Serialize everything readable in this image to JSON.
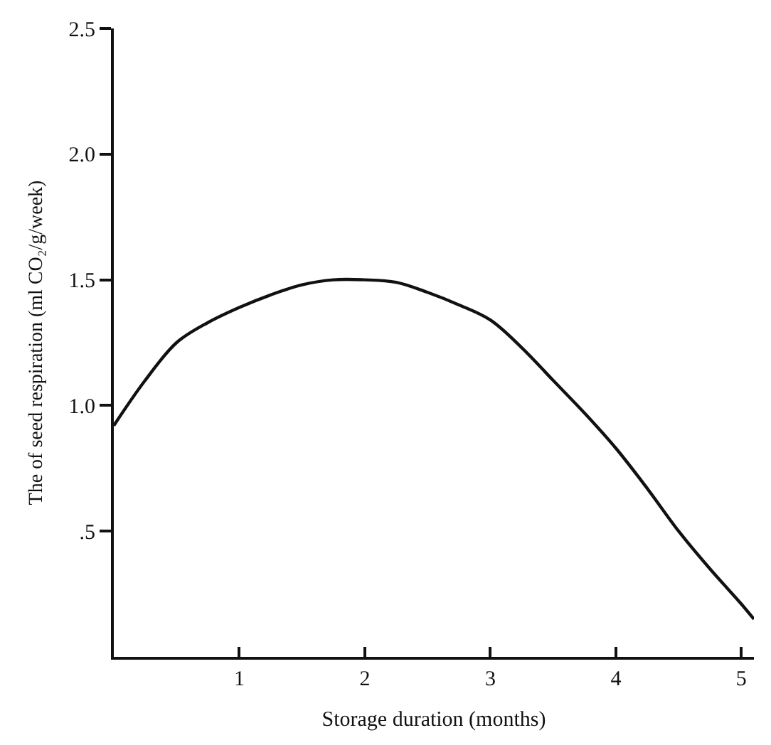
{
  "chart_data": {
    "type": "line",
    "xlabel": "Storage duration (months)",
    "ylabel": "The of seed respiration (ml CO₂/g/week)",
    "x": [
      0,
      0.25,
      0.5,
      0.75,
      1,
      1.25,
      1.5,
      1.75,
      2,
      2.25,
      2.5,
      2.75,
      3,
      3.25,
      3.5,
      3.75,
      4,
      4.25,
      4.5,
      4.75,
      5,
      5.1
    ],
    "series": [
      {
        "color": "#111111",
        "values": [
          0.92,
          1.1,
          1.25,
          1.33,
          1.39,
          1.44,
          1.48,
          1.5,
          1.5,
          1.49,
          1.45,
          1.4,
          1.34,
          1.23,
          1.1,
          0.97,
          0.83,
          0.67,
          0.5,
          0.35,
          0.21,
          0.15
        ]
      }
    ],
    "xlim": [
      0,
      5.1
    ],
    "xticks": [
      1,
      2,
      3,
      4,
      5
    ],
    "ylim": [
      0,
      2.5
    ],
    "yticks": [
      {
        "value": 0.5,
        "label": ".5"
      },
      {
        "value": 1.0,
        "label": "1.0"
      },
      {
        "value": 1.5,
        "label": "1.5"
      },
      {
        "value": 2.0,
        "label": "2.0"
      },
      {
        "value": 2.5,
        "label": "2.5"
      }
    ],
    "marker": "none",
    "line_style": "solid"
  }
}
